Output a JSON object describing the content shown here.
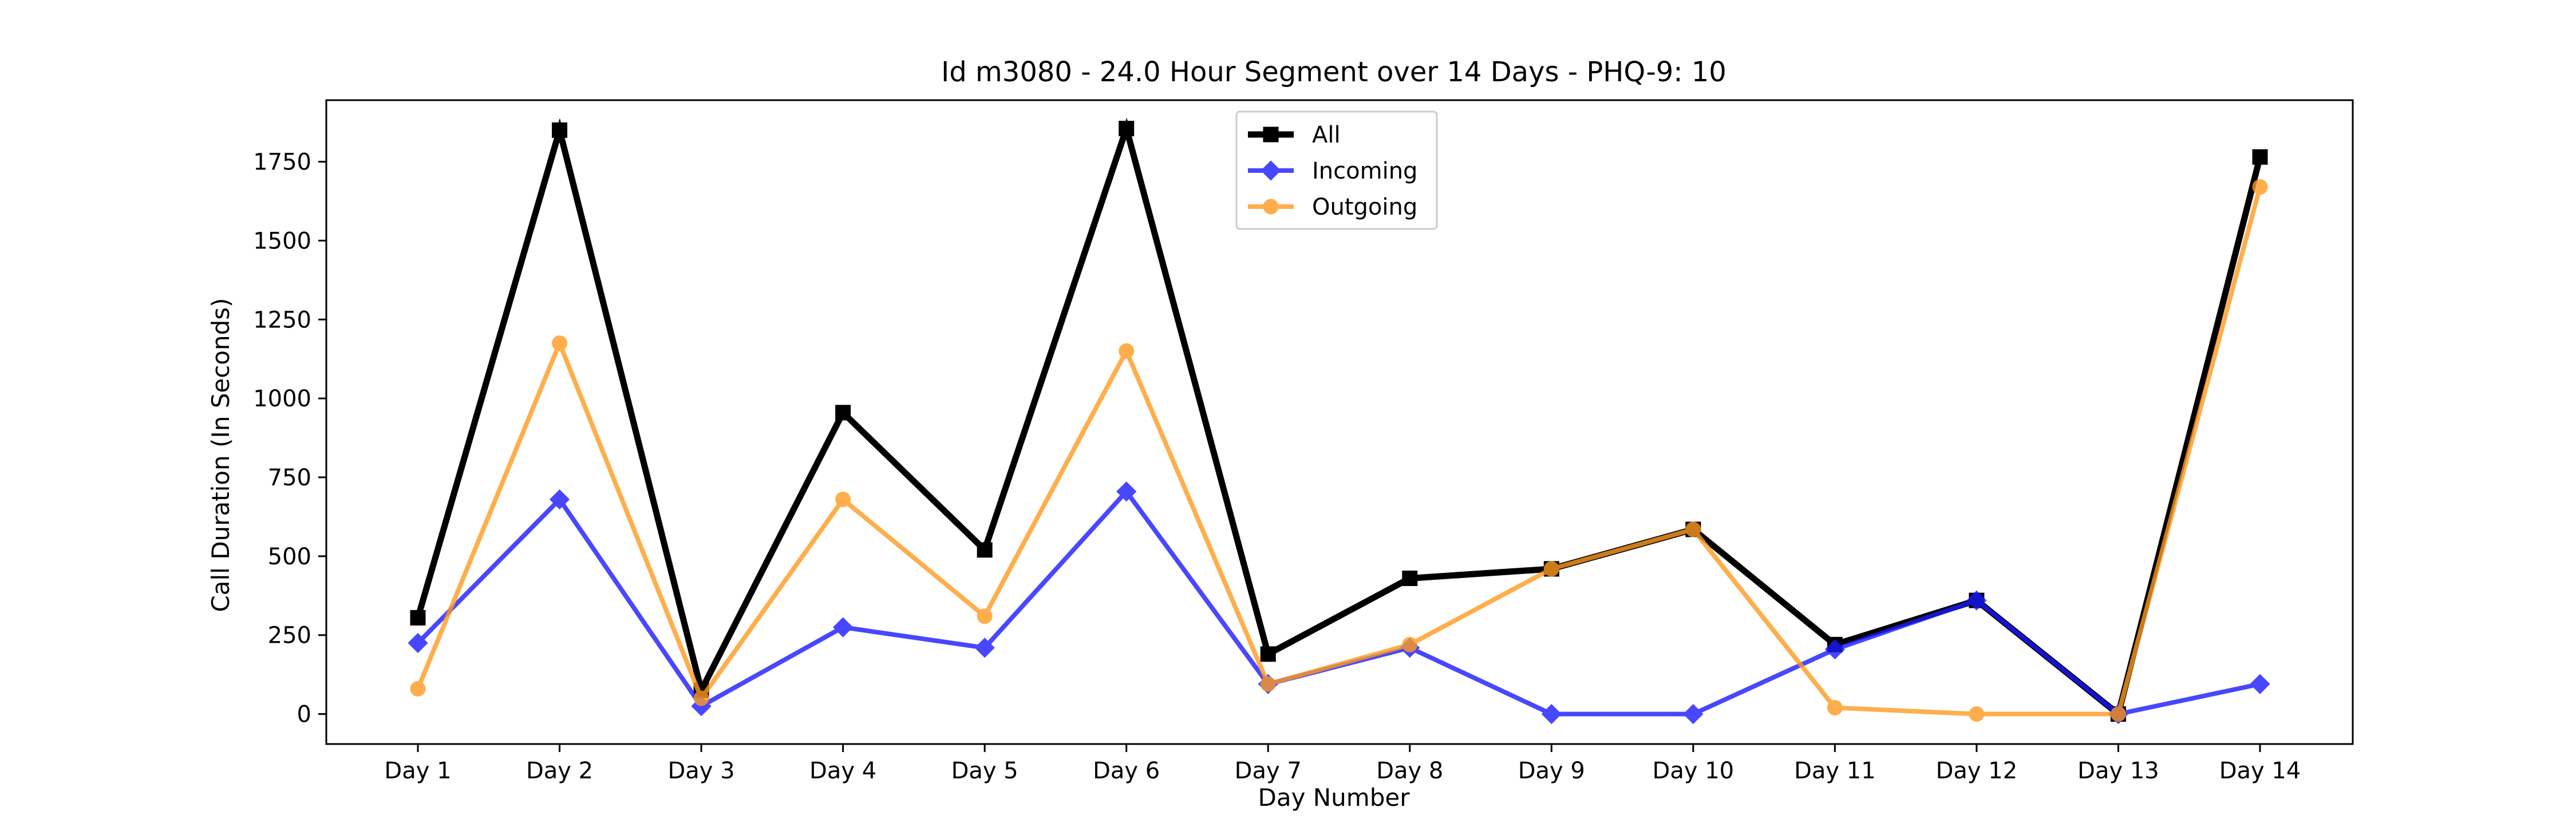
{
  "chart_data": {
    "type": "line",
    "title": "Id m3080 - 24.0 Hour Segment over 14 Days - PHQ-9: 10",
    "xlabel": "Day Number",
    "ylabel": "Call Duration (In Seconds)",
    "categories": [
      "Day 1",
      "Day 2",
      "Day 3",
      "Day 4",
      "Day 5",
      "Day 6",
      "Day 7",
      "Day 8",
      "Day 9",
      "Day 10",
      "Day 11",
      "Day 12",
      "Day 13",
      "Day 14"
    ],
    "ylim": [
      -95,
      1945
    ],
    "yticks": [
      0,
      250,
      500,
      750,
      1000,
      1250,
      1500,
      1750
    ],
    "grid": false,
    "legend_position": "top-center",
    "series": [
      {
        "name": "All",
        "color": "#000000",
        "marker": "square",
        "values": [
          305,
          1850,
          75,
          955,
          520,
          1855,
          190,
          430,
          460,
          585,
          220,
          360,
          0,
          1765
        ]
      },
      {
        "name": "Incoming",
        "color": "#1a1aff",
        "marker": "diamond",
        "values": [
          225,
          680,
          25,
          275,
          210,
          705,
          95,
          210,
          0,
          0,
          205,
          360,
          0,
          95
        ]
      },
      {
        "name": "Outgoing",
        "color": "#ff9a1f",
        "marker": "circle",
        "values": [
          80,
          1175,
          50,
          680,
          310,
          1150,
          95,
          220,
          460,
          585,
          20,
          0,
          0,
          1670
        ]
      }
    ]
  }
}
